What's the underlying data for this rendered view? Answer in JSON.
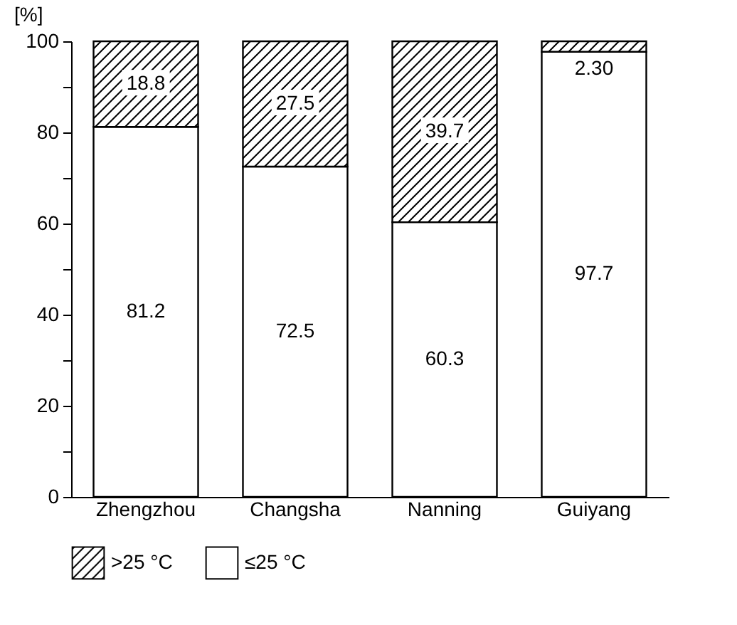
{
  "chart_data": {
    "type": "bar",
    "stacked": true,
    "ylabel": "[%]",
    "categories": [
      "Zhengzhou",
      "Changsha",
      "Nanning",
      "Guiyang"
    ],
    "series": [
      {
        "name": "≤25 °C",
        "color": "#ffffff",
        "values": [
          81.2,
          72.5,
          60.3,
          97.7
        ],
        "value_labels": [
          "81.2",
          "72.5",
          "60.3",
          "97.7"
        ]
      },
      {
        "name": ">25 °C",
        "color": "#000000",
        "values": [
          18.8,
          27.5,
          39.7,
          2.3
        ],
        "value_labels": [
          "18.8",
          "27.5",
          "39.7",
          "2.30"
        ]
      }
    ],
    "ylim": [
      0,
      100
    ],
    "yticks": [
      0,
      {
        "value": 10,
        "label": null
      },
      20,
      {
        "value": 30,
        "label": null
      },
      40,
      {
        "value": 50,
        "label": null
      },
      60,
      {
        "value": 70,
        "label": null
      },
      80,
      {
        "value": 90,
        "label": null
      },
      100
    ],
    "legend": "bottom"
  }
}
